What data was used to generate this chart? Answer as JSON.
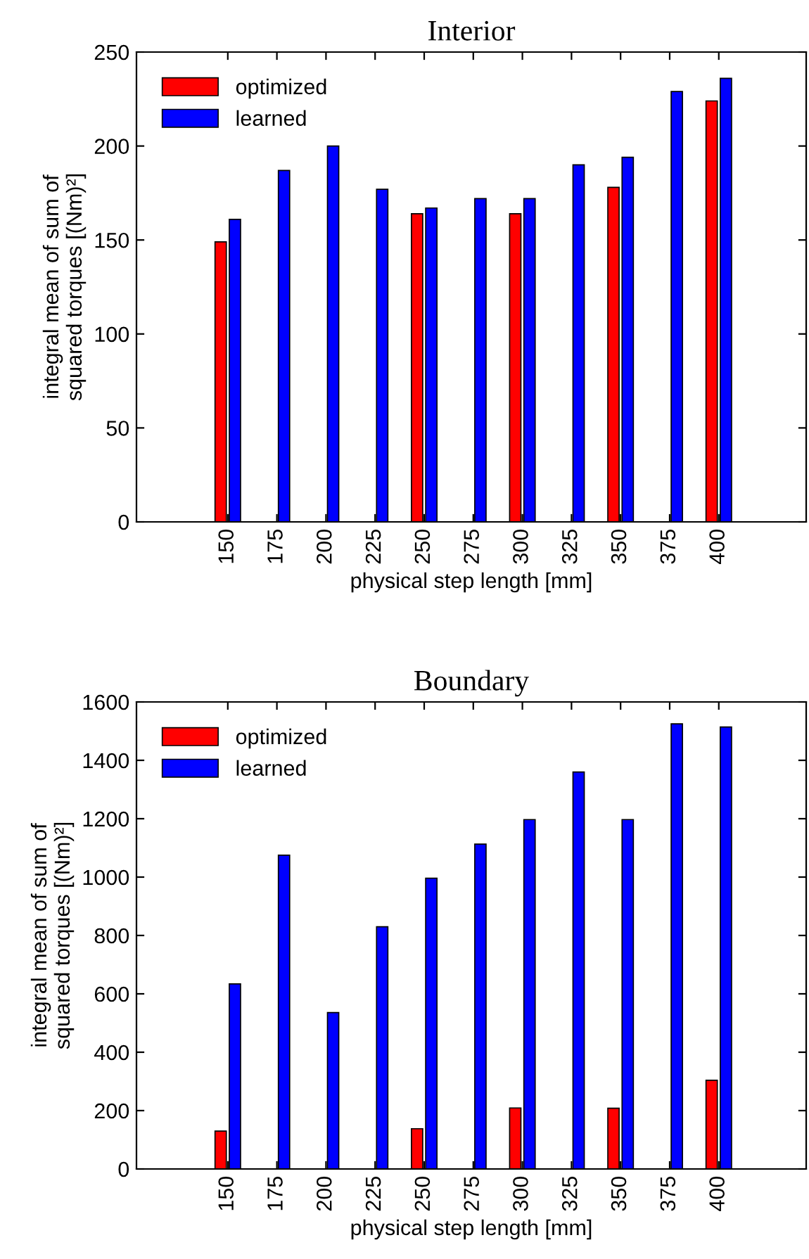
{
  "chart_data": [
    {
      "type": "bar",
      "title": "Interior",
      "xlabel": "physical step length [mm]",
      "ylabel": "integral mean of sum of\nsquared torques [(Nm)²]",
      "categories": [
        "150",
        "175",
        "200",
        "225",
        "250",
        "275",
        "300",
        "325",
        "350",
        "375",
        "400"
      ],
      "series": [
        {
          "name": "optimized",
          "color": "#ff0000",
          "values": [
            149,
            null,
            null,
            null,
            164,
            null,
            164,
            null,
            178,
            null,
            224
          ]
        },
        {
          "name": "learned",
          "color": "#0000ff",
          "values": [
            161,
            187,
            200,
            177,
            167,
            172,
            172,
            190,
            194,
            229,
            236
          ]
        }
      ],
      "ylim": [
        0,
        250
      ],
      "yticks": [
        0,
        50,
        100,
        150,
        200,
        250
      ],
      "legend": "top left",
      "grid": false
    },
    {
      "type": "bar",
      "title": "Boundary",
      "xlabel": "physical step length [mm]",
      "ylabel": "integral mean of sum of\nsquared torques [(Nm)²]",
      "categories": [
        "150",
        "175",
        "200",
        "225",
        "250",
        "275",
        "300",
        "325",
        "350",
        "375",
        "400"
      ],
      "series": [
        {
          "name": "optimized",
          "color": "#ff0000",
          "values": [
            130,
            null,
            null,
            null,
            138,
            null,
            209,
            null,
            208,
            null,
            304
          ]
        },
        {
          "name": "learned",
          "color": "#0000ff",
          "values": [
            634,
            1075,
            536,
            830,
            996,
            1113,
            1197,
            1360,
            1197,
            1525,
            1514
          ]
        }
      ],
      "ylim": [
        0,
        1600
      ],
      "yticks": [
        0,
        200,
        400,
        600,
        800,
        1000,
        1200,
        1400,
        1600
      ],
      "legend": "top left",
      "grid": false
    }
  ]
}
